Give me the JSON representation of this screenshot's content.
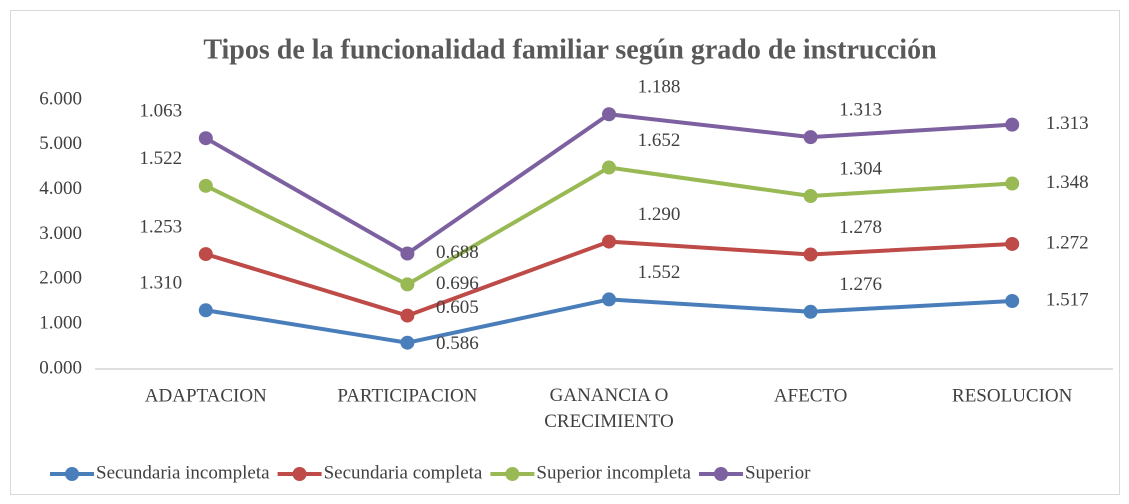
{
  "chart_data": {
    "type": "line",
    "stacked": true,
    "title": "Tipos de la funcionalidad familiar según grado de instrucción",
    "categories": [
      "ADAPTACION",
      "PARTICIPACION",
      "GANANCIA O CRECIMIENTO",
      "AFECTO",
      "RESOLUCION"
    ],
    "series": [
      {
        "name": "Secundaria incompleta",
        "color": "#4a7ebb",
        "values": [
          1.31,
          0.586,
          1.552,
          1.276,
          1.517
        ],
        "value_labels": [
          "1.310",
          "0.586",
          "1.552",
          "1.276",
          "1.517"
        ]
      },
      {
        "name": "Secundaria completa",
        "color": "#be4b48",
        "values": [
          1.253,
          0.605,
          1.29,
          1.278,
          1.272
        ],
        "value_labels": [
          "1.253",
          "0.605",
          "1.290",
          "1.278",
          "1.272"
        ]
      },
      {
        "name": "Superior incompleta",
        "color": "#98b954",
        "values": [
          1.522,
          0.696,
          1.652,
          1.304,
          1.348
        ],
        "value_labels": [
          "1.522",
          "0.696",
          "1.652",
          "1.304",
          "1.348"
        ]
      },
      {
        "name": "Superior",
        "color": "#7d60a0",
        "values": [
          1.063,
          0.688,
          1.188,
          1.313,
          1.313
        ],
        "value_labels": [
          "1.063",
          "0.688",
          "1.188",
          "1.313",
          "1.313"
        ]
      }
    ],
    "ylim": [
      0,
      6
    ],
    "yticks": [
      {
        "value": 0,
        "label": "0.000"
      },
      {
        "value": 1,
        "label": "1.000"
      },
      {
        "value": 2,
        "label": "2.000"
      },
      {
        "value": 3,
        "label": "3.000"
      },
      {
        "value": 4,
        "label": "4.000"
      },
      {
        "value": 5,
        "label": "5.000"
      },
      {
        "value": 6,
        "label": "6.000"
      }
    ],
    "legend": "bottom"
  }
}
